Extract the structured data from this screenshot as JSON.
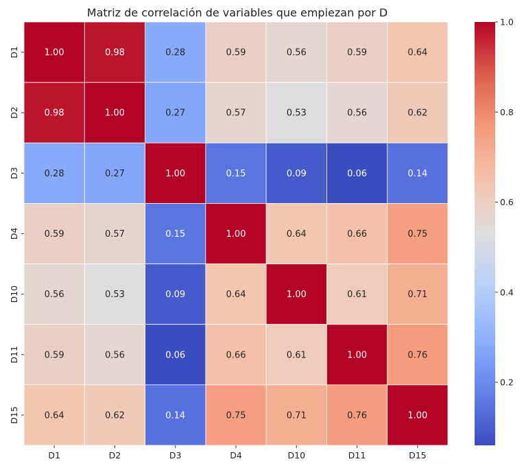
{
  "chart_data": {
    "type": "heatmap",
    "title": "Matriz de correlación de variables que empiezan por D",
    "xlabel": "",
    "ylabel": "",
    "x_labels": [
      "D1",
      "D2",
      "D3",
      "D4",
      "D10",
      "D11",
      "D15"
    ],
    "y_labels": [
      "D1",
      "D2",
      "D3",
      "D4",
      "D10",
      "D11",
      "D15"
    ],
    "values": [
      [
        1.0,
        0.98,
        0.28,
        0.59,
        0.56,
        0.59,
        0.64
      ],
      [
        0.98,
        1.0,
        0.27,
        0.57,
        0.53,
        0.56,
        0.62
      ],
      [
        0.28,
        0.27,
        1.0,
        0.15,
        0.09,
        0.06,
        0.14
      ],
      [
        0.59,
        0.57,
        0.15,
        1.0,
        0.64,
        0.66,
        0.75
      ],
      [
        0.56,
        0.53,
        0.09,
        0.64,
        1.0,
        0.61,
        0.71
      ],
      [
        0.59,
        0.56,
        0.06,
        0.66,
        0.61,
        1.0,
        0.76
      ],
      [
        0.64,
        0.62,
        0.14,
        0.75,
        0.71,
        0.76,
        1.0
      ]
    ],
    "colormap": "coolwarm",
    "color_range": [
      0.06,
      1.0
    ],
    "colorbar_ticks": [
      "0.2",
      "0.4",
      "0.6",
      "0.8",
      "1.0"
    ],
    "colorbar_tick_values": [
      0.2,
      0.4,
      0.6,
      0.8,
      1.0
    ],
    "annotation_format": "0.00",
    "cell_border_color": "#ffffff"
  }
}
